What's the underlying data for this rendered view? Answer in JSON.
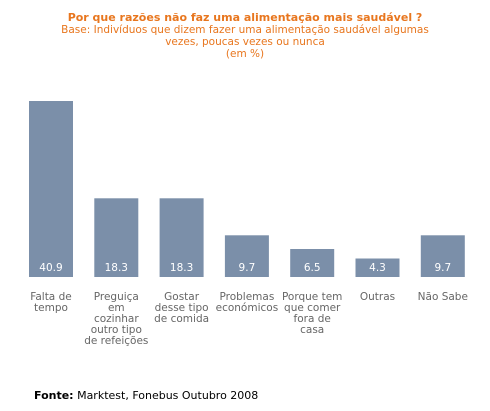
{
  "title": "Por que razões não faz uma alimentação mais saudável ?",
  "subtitle_lines": [
    "Base: Indivíduos que dizem fazer uma alimentação saudável algumas",
    "vezes, poucas vezes ou nunca",
    "(em %)"
  ],
  "footer": {
    "label": "Fonte:",
    "text": " Marktest, Fonebus Outubro 2008"
  },
  "colors": {
    "bar": "#7b8fa9",
    "bar_label": "#ffffff",
    "title": "#e8761e",
    "category_text": "#666666"
  },
  "chart_data": {
    "type": "bar",
    "title": "Por que razões não faz uma alimentação mais saudável ?",
    "categories": [
      [
        "Falta de",
        "tempo"
      ],
      [
        "Preguiça",
        "em",
        "cozinhar",
        "outro tipo",
        "de refeições"
      ],
      [
        "Gostar",
        "desse tipo",
        "de comida"
      ],
      [
        "Problemas",
        "económicos"
      ],
      [
        "Porque tem",
        "que comer",
        "fora de",
        "casa"
      ],
      [
        "Outras"
      ],
      [
        "Não Sabe"
      ]
    ],
    "values": [
      40.9,
      18.3,
      18.3,
      9.7,
      6.5,
      4.3,
      9.7
    ],
    "value_labels": [
      "40.9",
      "18.3",
      "18.3",
      "9.7",
      "6.5",
      "4.3",
      "9.7"
    ],
    "xlabel": "",
    "ylabel": "",
    "grid": false,
    "legend": "none"
  }
}
